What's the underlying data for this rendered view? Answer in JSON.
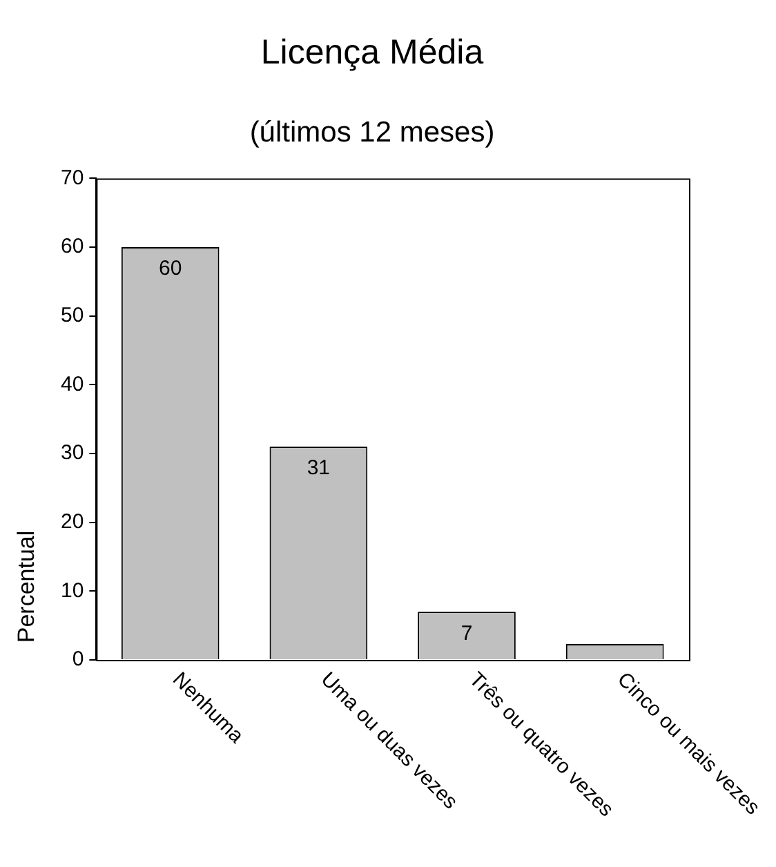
{
  "chart_data": {
    "type": "bar",
    "title": "Licença Média",
    "subtitle": "(últimos 12 meses)",
    "ylabel": "Percentual",
    "categories": [
      "Nenhuma",
      "Uma ou duas vezes",
      "Três ou quatro vezes",
      "Cinco ou mais vezes"
    ],
    "values": [
      60,
      31,
      7,
      2.3
    ],
    "value_labels": [
      "60",
      "31",
      "7",
      null
    ],
    "color": "#c0c0c0",
    "ylim": [
      0,
      70
    ],
    "yticks": [
      0,
      10,
      20,
      30,
      40,
      50,
      60,
      70
    ],
    "grid": false,
    "legend": false
  }
}
